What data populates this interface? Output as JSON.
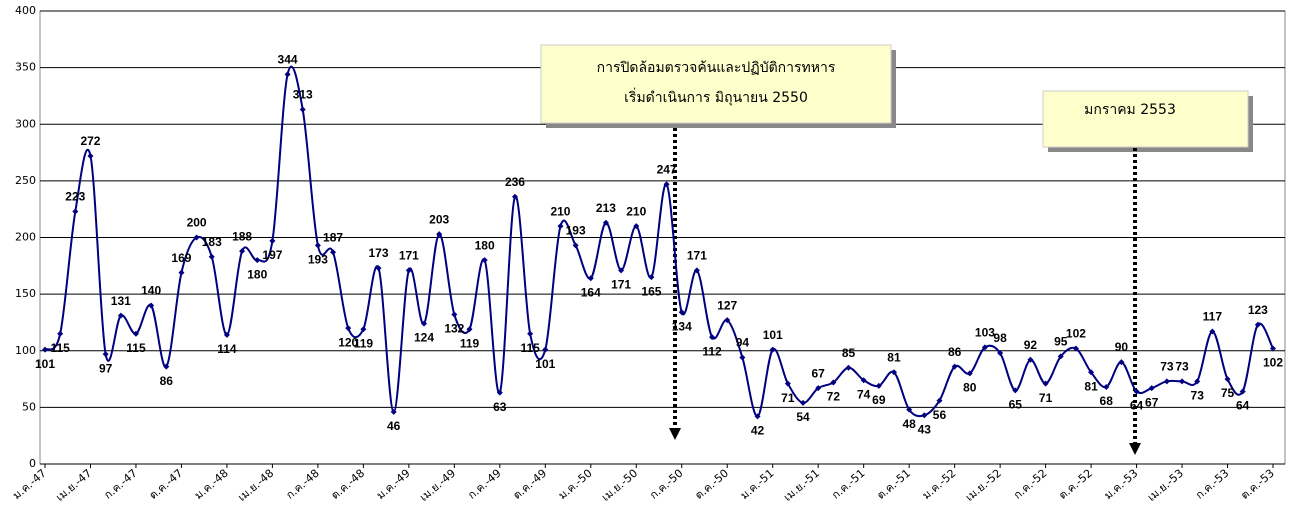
{
  "chart_data": {
    "type": "line",
    "categories": [
      "ม.ค.-47",
      null,
      null,
      "เม.ย.-47",
      null,
      null,
      "ก.ค.-47",
      null,
      null,
      "ต.ค.-47",
      null,
      null,
      "ม.ค.-48",
      null,
      null,
      "เม.ย.-48",
      null,
      null,
      "ก.ค.-48",
      null,
      null,
      "ต.ค.-48",
      null,
      null,
      "ม.ค.-49",
      null,
      null,
      "เม.ย.-49",
      null,
      null,
      "ก.ค.-49",
      null,
      null,
      "ต.ค.-49",
      null,
      null,
      "ม.ค.-50",
      null,
      null,
      "เม.ย.-50",
      null,
      null,
      "ก.ค.-50",
      null,
      null,
      "ต.ค.-50",
      null,
      null,
      "ม.ค.-51",
      null,
      null,
      "เม.ย.-51",
      null,
      null,
      "ก.ค.-51",
      null,
      null,
      "ต.ค.-51",
      null,
      null,
      "ม.ค.-52",
      null,
      null,
      "เม.ย.-52",
      null,
      null,
      "ก.ค.-52",
      null,
      null,
      "ต.ค.-52",
      null,
      null,
      "ม.ค.-53",
      null,
      null,
      "เม.ย.-53",
      null,
      null,
      "ก.ค.-53",
      null,
      null,
      "ต.ค.-53"
    ],
    "series": [
      {
        "color": "#000080",
        "values": [
          101,
          115,
          223,
          272,
          97,
          131,
          115,
          140,
          86,
          169,
          200,
          183,
          114,
          188,
          180,
          197,
          344,
          313,
          193,
          187,
          120,
          119,
          173,
          46,
          171,
          124,
          203,
          132,
          119,
          180,
          63,
          236,
          115,
          101,
          210,
          193,
          164,
          213,
          171,
          210,
          165,
          247,
          134,
          171,
          112,
          127,
          94,
          42,
          101,
          71,
          54,
          67,
          72,
          85,
          74,
          69,
          81,
          48,
          43,
          56,
          86,
          80,
          103,
          98,
          65,
          92,
          71,
          95,
          102,
          81,
          68,
          90,
          64,
          67,
          73,
          73,
          73,
          117,
          75,
          64,
          123,
          102
        ]
      }
    ],
    "ylim": [
      0,
      400
    ],
    "yticks": [
      0,
      50,
      100,
      150,
      200,
      250,
      300,
      350,
      400
    ],
    "grid": true,
    "annotations": [
      {
        "lines": [
          "การปิดล้อมตรวจค้นและปฏิบัติการทหาร",
          "เริ่มดำเนินการ มิถุนายน  2550"
        ]
      },
      {
        "lines": [
          "มกราคม 2553"
        ]
      }
    ]
  }
}
